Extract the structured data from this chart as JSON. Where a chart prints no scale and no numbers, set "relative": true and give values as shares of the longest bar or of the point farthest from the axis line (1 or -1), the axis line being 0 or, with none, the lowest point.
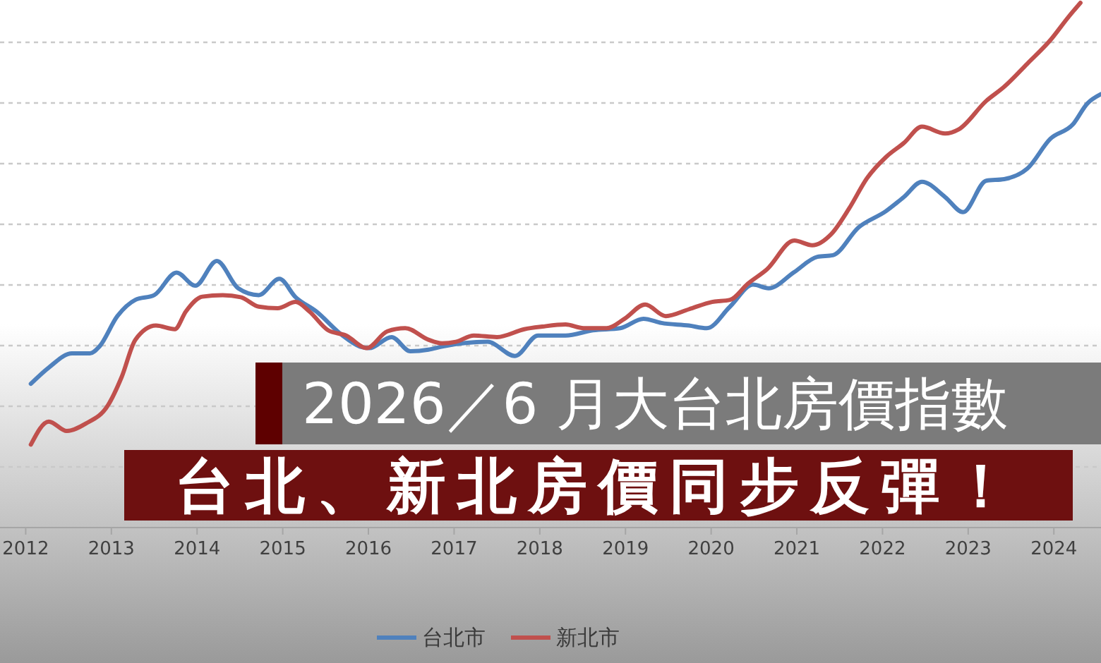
{
  "chart_data": {
    "type": "line",
    "title": "台北、新北房價同步反彈！",
    "subtitle": "2026／6 月大台北房價指數",
    "relative": true,
    "xlim": [
      2011.7,
      2024.55
    ],
    "xticks": [
      2012,
      2013,
      2014,
      2015,
      2016,
      2017,
      2018,
      2019,
      2020,
      2021,
      2022,
      2023,
      2024
    ],
    "grid": "y",
    "legend": "bottom",
    "series": [
      {
        "name": "台北市",
        "color": "#4f81bd",
        "x": [
          2012.06,
          2012.27,
          2012.54,
          2012.75,
          2012.86,
          2013.07,
          2013.28,
          2013.5,
          2013.76,
          2013.98,
          2014.23,
          2014.48,
          2014.72,
          2014.96,
          2015.15,
          2015.39,
          2015.69,
          2015.9,
          2016.01,
          2016.27,
          2016.49,
          2016.7,
          2016.86,
          2017.39,
          2017.71,
          2017.98,
          2018.3,
          2018.62,
          2018.94,
          2019.21,
          2019.42,
          2019.74,
          2019.95,
          2020.22,
          2020.49,
          2020.67,
          2020.97,
          2021.24,
          2021.42,
          2021.72,
          2022.04,
          2022.25,
          2022.46,
          2022.73,
          2022.94,
          2023.21,
          2023.42,
          2023.69,
          2023.96,
          2024.22,
          2024.39,
          2024.55
        ],
        "values": [
          0.274,
          0.305,
          0.332,
          0.332,
          0.345,
          0.403,
          0.434,
          0.443,
          0.486,
          0.461,
          0.508,
          0.456,
          0.443,
          0.474,
          0.439,
          0.412,
          0.367,
          0.345,
          0.342,
          0.363,
          0.336,
          0.339,
          0.345,
          0.354,
          0.327,
          0.366,
          0.366,
          0.376,
          0.38,
          0.398,
          0.39,
          0.385,
          0.38,
          0.421,
          0.463,
          0.456,
          0.487,
          0.516,
          0.519,
          0.572,
          0.603,
          0.63,
          0.659,
          0.63,
          0.601,
          0.661,
          0.664,
          0.684,
          0.741,
          0.768,
          0.808,
          0.826
        ]
      },
      {
        "name": "新北市",
        "color": "#c0504d",
        "x": [
          2012.06,
          2012.27,
          2012.48,
          2012.7,
          2012.96,
          2013.12,
          2013.28,
          2013.52,
          2013.74,
          2013.87,
          2014.06,
          2014.3,
          2014.51,
          2014.72,
          2014.94,
          2015.15,
          2015.31,
          2015.53,
          2015.74,
          2015.98,
          2016.22,
          2016.43,
          2016.7,
          2016.86,
          2017.02,
          2017.23,
          2017.5,
          2017.82,
          2018.03,
          2018.3,
          2018.51,
          2018.78,
          2018.99,
          2019.23,
          2019.47,
          2019.74,
          2020.01,
          2020.22,
          2020.43,
          2020.65,
          2020.97,
          2021.18,
          2021.4,
          2021.61,
          2021.82,
          2022.04,
          2022.25,
          2022.46,
          2022.73,
          2022.89,
          2023.21,
          2023.42,
          2023.69,
          2023.96,
          2024.17,
          2024.31
        ],
        "values": [
          0.158,
          0.202,
          0.184,
          0.198,
          0.233,
          0.287,
          0.358,
          0.385,
          0.378,
          0.412,
          0.44,
          0.443,
          0.439,
          0.421,
          0.418,
          0.43,
          0.412,
          0.376,
          0.366,
          0.342,
          0.374,
          0.38,
          0.358,
          0.351,
          0.354,
          0.366,
          0.363,
          0.378,
          0.383,
          0.387,
          0.38,
          0.38,
          0.398,
          0.425,
          0.403,
          0.416,
          0.43,
          0.434,
          0.465,
          0.492,
          0.547,
          0.538,
          0.559,
          0.608,
          0.666,
          0.706,
          0.733,
          0.764,
          0.751,
          0.759,
          0.813,
          0.84,
          0.884,
          0.929,
          0.973,
          1
        ]
      }
    ]
  }
}
